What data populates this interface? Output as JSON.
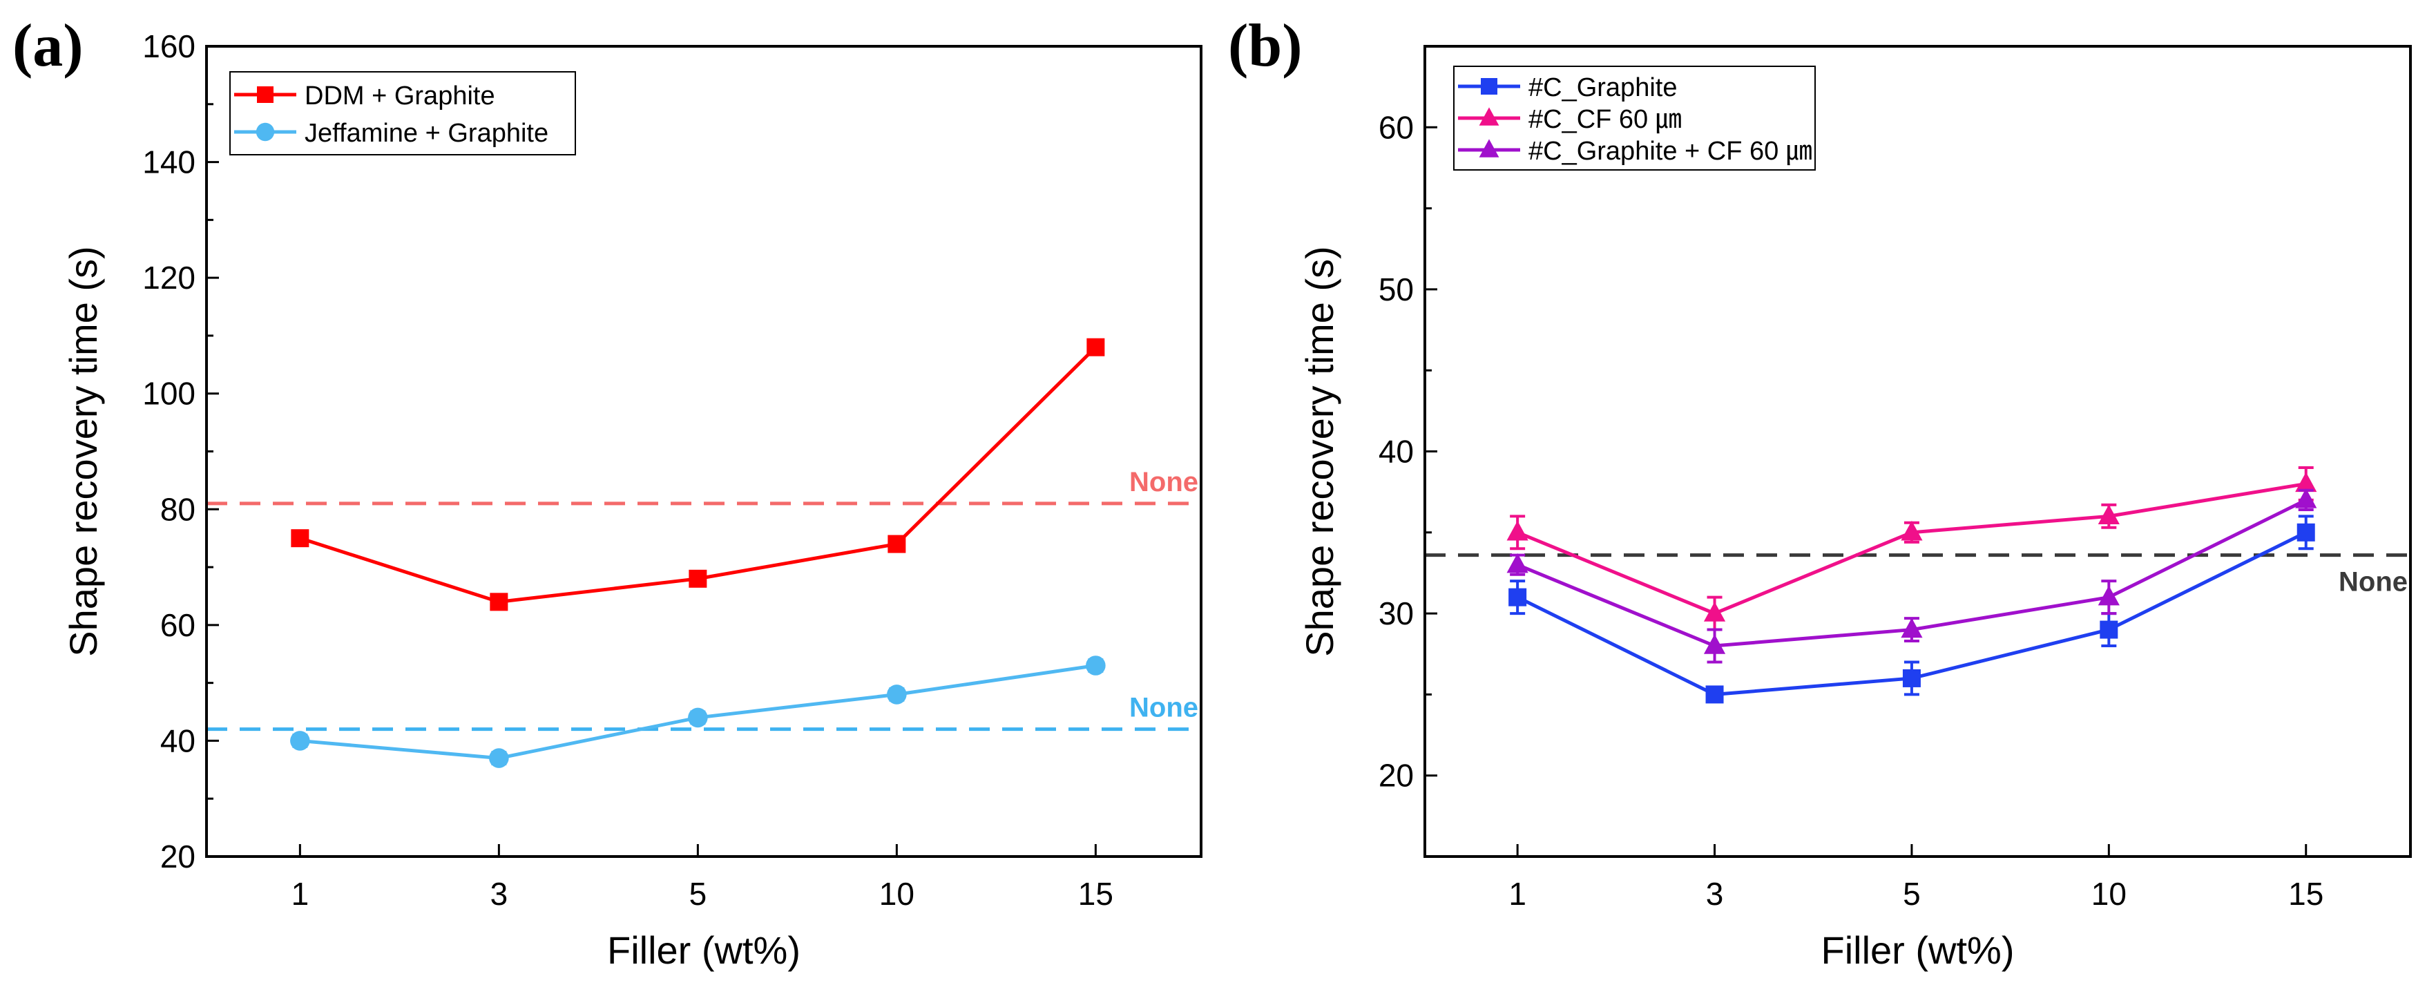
{
  "chart_data": [
    {
      "type": "line",
      "panel_label": "(a)",
      "xlabel": "Filler (wt%)",
      "ylabel": "Shape recovery time (s)",
      "categories": [
        "1",
        "3",
        "5",
        "10",
        "15"
      ],
      "ylim": [
        20,
        160
      ],
      "yticks": [
        20,
        40,
        60,
        80,
        100,
        120,
        140,
        160
      ],
      "legend_position": "top-left",
      "series": [
        {
          "name": "DDM + Graphite",
          "color": "#ff0000",
          "marker": "square",
          "values": [
            75,
            64,
            68,
            74,
            108
          ],
          "errors": [
            1,
            1,
            1,
            1,
            1
          ]
        },
        {
          "name": "Jeffamine + Graphite",
          "color": "#4fb8f2",
          "marker": "circle",
          "values": [
            40,
            37,
            44,
            48,
            53
          ],
          "errors": [
            1,
            1,
            1,
            1,
            1
          ]
        }
      ],
      "reference_lines": [
        {
          "label": "None",
          "value": 81,
          "color": "#f46a6a"
        },
        {
          "label": "None",
          "value": 42,
          "color": "#3fb2f0"
        }
      ]
    },
    {
      "type": "line",
      "panel_label": "(b)",
      "xlabel": "Filler (wt%)",
      "ylabel": "Shape recovery time (s)",
      "categories": [
        "1",
        "3",
        "5",
        "10",
        "15"
      ],
      "ylim": [
        15,
        65
      ],
      "yticks": [
        20,
        30,
        40,
        50,
        60
      ],
      "legend_position": "top-left",
      "series": [
        {
          "name": "#C_Graphite",
          "color": "#1f3ff0",
          "marker": "square",
          "values": [
            31,
            25,
            26,
            29,
            35
          ],
          "errors": [
            1,
            0.4,
            1,
            1,
            1
          ]
        },
        {
          "name": "#C_CF 60 ㎛",
          "color": "#f0108a",
          "marker": "triangle",
          "values": [
            35,
            30,
            35,
            36,
            38
          ],
          "errors": [
            1,
            1,
            0.6,
            0.7,
            1
          ]
        },
        {
          "name": "#C_Graphite + CF 60 ㎛",
          "color": "#a010cc",
          "marker": "triangle",
          "values": [
            33,
            28,
            29,
            31,
            37
          ],
          "errors": [
            0.6,
            1,
            0.7,
            1,
            0.6
          ]
        }
      ],
      "reference_lines": [
        {
          "label": "None",
          "value": 33.6,
          "color": "#3a3a3a"
        }
      ]
    }
  ]
}
